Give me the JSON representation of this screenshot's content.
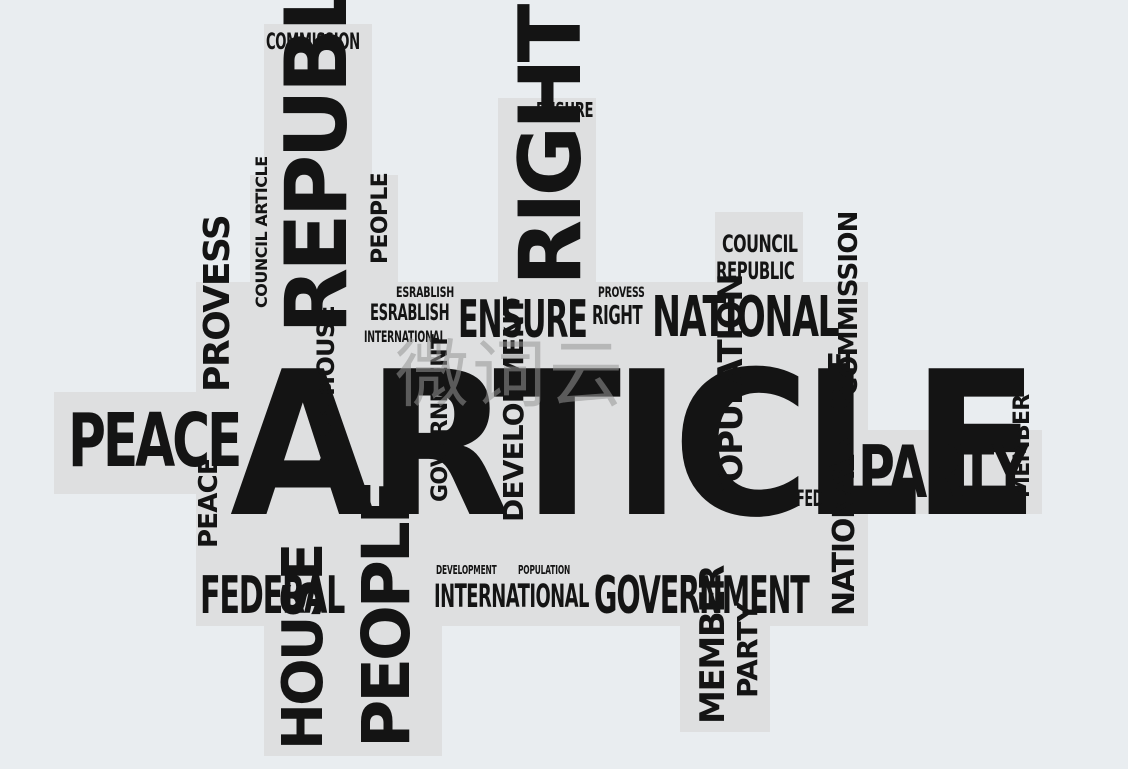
{
  "words": [
    "ARTICLE",
    "PEACE",
    "PARTY",
    "NATIONAL",
    "GOVERNMENT",
    "FEDERAL",
    "INTERNATIONAL",
    "ENSURE",
    "COUNCIL",
    "REPUBLIC",
    "COMMISSION",
    "RIGHT",
    "ENSURE",
    "REPUBLIC",
    "PEOPLE",
    "HOUSE",
    "PEOPLE",
    "PROVESS",
    "PEACE",
    "HOUSE",
    "REPUBLIC",
    "COUNCIL ARTICLE",
    "GOVERNMENT",
    "DEVELOPMENT",
    "POPULATION",
    "ARTICLE",
    "COMMISSION",
    "FEDERAL",
    "NATIONAL",
    "MEMBER",
    "MEMBER",
    "PARTY",
    "ESRABLISH",
    "ESRABLISH",
    "INTERNATIONAL",
    "PROVESS",
    "RIGHT",
    "DEVELOPMENT",
    "POPULATION"
  ],
  "watermark": "微词云"
}
